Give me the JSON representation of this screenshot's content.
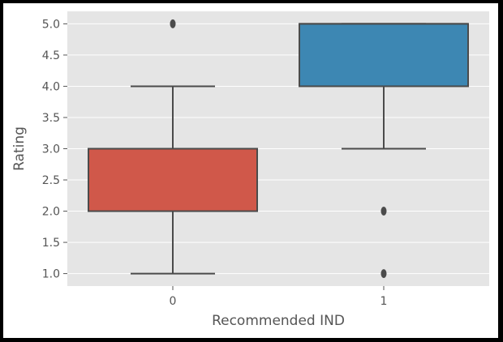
{
  "chart_data": {
    "type": "box",
    "xlabel": "Recommended IND",
    "ylabel": "Rating",
    "categories": [
      "0",
      "1"
    ],
    "ylim": [
      0.8,
      5.2
    ],
    "yticks": [
      "1.0",
      "1.5",
      "2.0",
      "2.5",
      "3.0",
      "3.5",
      "4.0",
      "4.5",
      "5.0"
    ],
    "grid": true,
    "boxes": [
      {
        "category": "0",
        "whisker_low": 1.0,
        "q1": 2.0,
        "median": 3.0,
        "q3": 3.0,
        "whisker_high": 4.0,
        "outliers": [
          5.0
        ],
        "color": "#d0584a"
      },
      {
        "category": "1",
        "whisker_low": 3.0,
        "q1": 4.0,
        "median": 5.0,
        "q3": 5.0,
        "whisker_high": 5.0,
        "outliers": [
          2.0,
          1.0
        ],
        "color": "#3d87b3"
      }
    ]
  },
  "style": {
    "plot_background": "#e5e5e5",
    "grid_color": "#ffffff",
    "box_edge_color": "#4b4b4b",
    "text_color": "#555555",
    "frame_color": "#000000"
  }
}
